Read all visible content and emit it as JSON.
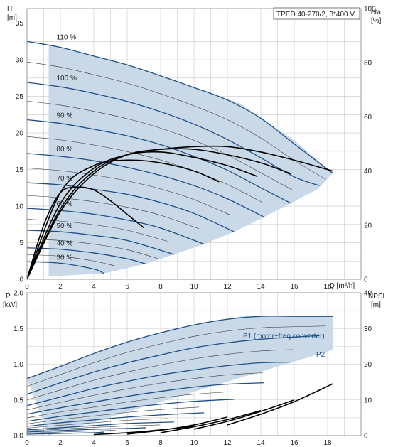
{
  "title_box": "TPED 40-270/2, 3*400 V",
  "chart_data": [
    {
      "type": "line",
      "panel": "head-efficiency",
      "title": "TPED 40-270/2, 3*400 V",
      "xlabel": "Q [m³/h]",
      "ylabel_lines": [
        "H",
        "[m]"
      ],
      "y2label_lines": [
        "eta",
        "[%]"
      ],
      "xlim": [
        0,
        20
      ],
      "ylim": [
        0,
        37
      ],
      "y2lim": [
        0,
        100
      ],
      "x_ticks": [
        0,
        2,
        4,
        6,
        8,
        10,
        12,
        14,
        16,
        18
      ],
      "x_tick_labels": [
        "0",
        "2",
        "4",
        "6",
        "8",
        "10",
        "12",
        "14",
        "16",
        "18"
      ],
      "y_ticks": [
        0,
        5,
        10,
        15,
        20,
        25,
        30,
        35
      ],
      "y_tick_labels": [
        "0",
        "5",
        "10",
        "15",
        "20",
        "25",
        "30",
        "35"
      ],
      "y2_ticks": [
        0,
        20,
        40,
        60,
        80,
        100
      ],
      "y2_tick_labels": [
        "0",
        "20",
        "40",
        "60",
        "80",
        "100"
      ],
      "grid": true,
      "operating_area": {
        "upper": [
          [
            1.3,
            32.0
          ],
          [
            4,
            30.5
          ],
          [
            6,
            29.3
          ],
          [
            8,
            27.8
          ],
          [
            10,
            26.2
          ],
          [
            12.8,
            24.0
          ],
          [
            14,
            22.0
          ],
          [
            16,
            19.0
          ],
          [
            18.3,
            14.5
          ]
        ],
        "lower": [
          [
            1.3,
            0.4
          ],
          [
            4.6,
            0.8
          ],
          [
            7.1,
            2.1
          ],
          [
            8.8,
            3.4
          ],
          [
            10.6,
            4.8
          ],
          [
            12.4,
            6.5
          ],
          [
            14.2,
            8.5
          ],
          [
            15.8,
            10.4
          ],
          [
            17.4,
            12.3
          ],
          [
            18.3,
            14.5
          ]
        ]
      },
      "speed_curves": [
        {
          "label": "110 %",
          "x": [
            0,
            2,
            4,
            6,
            8,
            10,
            12,
            14,
            16,
            18.3
          ],
          "y": [
            32.5,
            31.7,
            30.5,
            29.3,
            27.8,
            26.2,
            24.5,
            22.0,
            18.5,
            14.5
          ]
        },
        {
          "label": "100 %",
          "x": [
            0,
            2,
            4,
            6,
            8,
            10,
            12,
            14,
            16,
            17.5
          ],
          "y": [
            26.9,
            26.3,
            25.4,
            24.3,
            22.9,
            21.2,
            19.1,
            16.6,
            14.0,
            12.8
          ]
        },
        {
          "label": "90 %",
          "x": [
            0,
            2,
            4,
            6,
            8,
            10,
            12,
            14,
            15.8
          ],
          "y": [
            21.8,
            21.3,
            20.5,
            19.6,
            18.4,
            16.8,
            14.9,
            12.5,
            10.4
          ]
        },
        {
          "label": "80 %",
          "x": [
            0,
            2,
            4,
            6,
            8,
            10,
            12,
            14.2
          ],
          "y": [
            17.2,
            16.8,
            16.2,
            15.3,
            14.2,
            12.8,
            11.0,
            8.5
          ]
        },
        {
          "label": "70 %",
          "x": [
            0,
            2,
            4,
            6,
            8,
            10,
            12.4
          ],
          "y": [
            13.2,
            12.9,
            12.3,
            11.6,
            10.5,
            9.0,
            6.5
          ]
        },
        {
          "label": "60 %",
          "x": [
            0,
            2,
            4,
            6,
            8,
            10.6
          ],
          "y": [
            9.7,
            9.4,
            8.9,
            8.1,
            7.0,
            4.8
          ]
        },
        {
          "label": "50 %",
          "x": [
            0,
            2,
            4,
            6,
            8.8
          ],
          "y": [
            6.7,
            6.5,
            6.0,
            5.3,
            3.4
          ]
        },
        {
          "label": "40 %",
          "x": [
            0,
            2,
            4,
            6,
            7.1
          ],
          "y": [
            4.3,
            4.1,
            3.6,
            2.8,
            2.1
          ]
        },
        {
          "label": "30 %",
          "x": [
            0,
            2,
            4,
            4.6
          ],
          "y": [
            2.4,
            2.2,
            1.4,
            0.8
          ]
        }
      ],
      "efficiency_curves_eta": [
        {
          "x": [
            0,
            1,
            2,
            3,
            4,
            5,
            6,
            7
          ],
          "y": [
            0,
            20,
            32,
            34,
            33,
            29,
            24,
            19
          ]
        },
        {
          "x": [
            0,
            2,
            4,
            6,
            8,
            10,
            11.5
          ],
          "y": [
            0,
            32,
            42,
            44,
            43,
            40,
            36
          ]
        },
        {
          "x": [
            0,
            2,
            4,
            6,
            8,
            10,
            12,
            13.8
          ],
          "y": [
            0,
            28,
            41,
            46,
            47,
            45,
            42,
            38
          ]
        },
        {
          "x": [
            0,
            2,
            4,
            6,
            8,
            10,
            12,
            14,
            15.8
          ],
          "y": [
            0,
            26,
            40,
            46,
            48,
            48,
            46,
            43,
            39
          ]
        },
        {
          "x": [
            0,
            2,
            4,
            6,
            8,
            10,
            12,
            14,
            16,
            18.3
          ],
          "y": [
            0,
            25,
            39,
            46,
            48,
            49,
            49,
            47,
            44,
            40
          ]
        }
      ]
    },
    {
      "type": "line",
      "panel": "power-npsh",
      "xlabel": "",
      "ylabel_lines": [
        "P",
        "[kW]"
      ],
      "y2label_lines": [
        "NPSH",
        "[m]"
      ],
      "xlim": [
        0,
        20
      ],
      "ylim": [
        0,
        2.0
      ],
      "y2lim": [
        0,
        40
      ],
      "x_ticks": [
        0,
        2,
        4,
        6,
        8,
        10,
        12,
        14,
        16,
        18
      ],
      "x_tick_labels": [
        "0",
        "2",
        "4",
        "6",
        "8",
        "10",
        "12",
        "14",
        "16",
        "18"
      ],
      "y_ticks": [
        0.0,
        0.5,
        1.0,
        1.5,
        2.0
      ],
      "y_tick_labels": [
        "0.0",
        "0.5",
        "1.0",
        "1.5",
        "2.0"
      ],
      "y2_ticks": [
        0,
        10,
        20,
        30,
        40
      ],
      "y2_tick_labels": [
        "0",
        "10",
        "20",
        "30",
        "40"
      ],
      "grid": true,
      "series_labels": [
        "P1 (motor+freq.converter)",
        "P2"
      ],
      "operating_area": {
        "upper": [
          [
            0,
            0.8
          ],
          [
            2,
            0.97
          ],
          [
            4,
            1.15
          ],
          [
            6,
            1.31
          ],
          [
            8,
            1.44
          ],
          [
            10,
            1.55
          ],
          [
            12.8,
            1.67
          ],
          [
            14,
            1.67
          ],
          [
            16,
            1.67
          ],
          [
            18.3,
            1.67
          ]
        ],
        "lower": [
          [
            1.3,
            0.0
          ],
          [
            18.3,
            1.2
          ]
        ]
      },
      "power_curves": [
        {
          "x": [
            0,
            2,
            4,
            6,
            8,
            10,
            12,
            14,
            16,
            18.3
          ],
          "y": [
            0.8,
            0.97,
            1.15,
            1.31,
            1.44,
            1.55,
            1.63,
            1.67,
            1.67,
            1.67
          ]
        },
        {
          "x": [
            0,
            2,
            4,
            6,
            8,
            10,
            12,
            14,
            16,
            17.5
          ],
          "y": [
            0.58,
            0.74,
            0.89,
            1.02,
            1.13,
            1.23,
            1.3,
            1.35,
            1.38,
            1.4
          ]
        },
        {
          "x": [
            0,
            2,
            4,
            6,
            8,
            10,
            12,
            14,
            15.8
          ],
          "y": [
            0.42,
            0.54,
            0.66,
            0.76,
            0.85,
            0.92,
            0.98,
            1.02,
            1.03
          ]
        },
        {
          "x": [
            0,
            2,
            4,
            6,
            8,
            10,
            12,
            14.2
          ],
          "y": [
            0.3,
            0.39,
            0.47,
            0.55,
            0.62,
            0.68,
            0.72,
            0.74
          ]
        },
        {
          "x": [
            0,
            2,
            4,
            6,
            8,
            10,
            12.4
          ],
          "y": [
            0.2,
            0.27,
            0.33,
            0.39,
            0.44,
            0.48,
            0.51
          ]
        },
        {
          "x": [
            0,
            2,
            4,
            6,
            8,
            10.6
          ],
          "y": [
            0.13,
            0.18,
            0.22,
            0.26,
            0.29,
            0.32
          ]
        },
        {
          "x": [
            0,
            2,
            4,
            6,
            8.8
          ],
          "y": [
            0.08,
            0.11,
            0.14,
            0.17,
            0.19
          ]
        },
        {
          "x": [
            0,
            2,
            4,
            6,
            7.1
          ],
          "y": [
            0.05,
            0.07,
            0.09,
            0.1,
            0.11
          ]
        },
        {
          "x": [
            0,
            2,
            4,
            4.6
          ],
          "y": [
            0.02,
            0.03,
            0.04,
            0.05
          ]
        }
      ],
      "npsh_curves": [
        {
          "x": [
            4,
            6,
            8,
            10
          ],
          "y": [
            0.3,
            0.8,
            1.6,
            2.6
          ]
        },
        {
          "x": [
            6,
            8,
            10,
            12
          ],
          "y": [
            0.4,
            1.5,
            3.0,
            5.2
          ]
        },
        {
          "x": [
            8,
            10,
            12,
            14
          ],
          "y": [
            0.8,
            2.5,
            4.5,
            7.0
          ]
        },
        {
          "x": [
            10,
            12,
            14,
            16
          ],
          "y": [
            1.8,
            4.0,
            6.8,
            10.0
          ]
        },
        {
          "x": [
            12,
            14,
            16,
            18.3
          ],
          "y": [
            3.0,
            6.0,
            9.5,
            14.5
          ]
        }
      ]
    }
  ]
}
